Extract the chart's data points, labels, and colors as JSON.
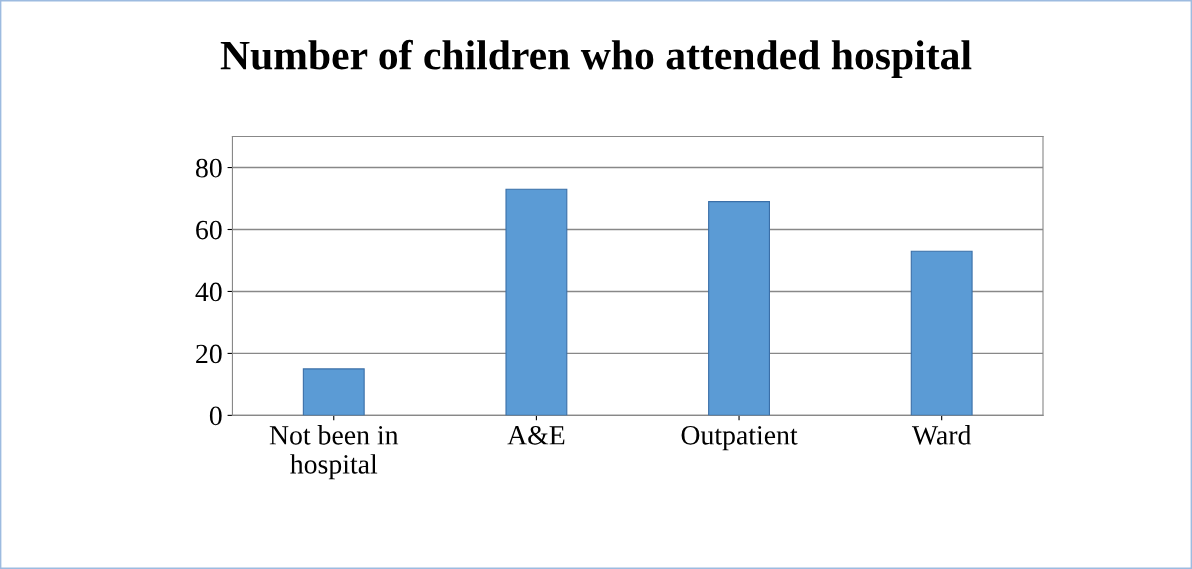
{
  "chart_data": {
    "type": "bar",
    "title": "Number of children who attended hospital",
    "categories": [
      "Not been in hospital",
      "A&E",
      "Outpatient",
      "Ward"
    ],
    "values": [
      15,
      73,
      69,
      53
    ],
    "color": "#5b9bd5",
    "ylim": [
      0,
      90
    ],
    "yticks": [
      0,
      20,
      40,
      60,
      80
    ],
    "grid": "y"
  }
}
